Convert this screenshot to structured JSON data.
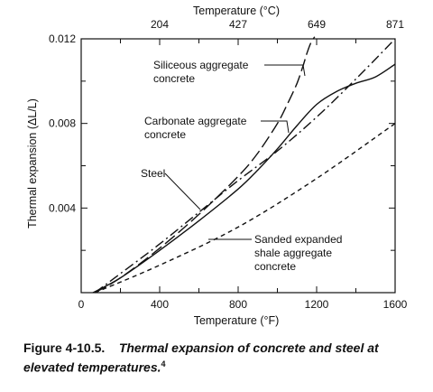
{
  "chart_data": {
    "type": "line",
    "xlabel": "Temperature (°F)",
    "x2label": "Temperature (°C)",
    "ylabel": "Thermal expansion (ΔL/L)",
    "xlim": [
      0,
      1600
    ],
    "ylim": [
      0,
      0.012
    ],
    "x_ticks": [
      "0",
      "400",
      "800",
      "1200",
      "1600"
    ],
    "x_tick_values": [
      0,
      400,
      800,
      1200,
      1600
    ],
    "x2_ticks": [
      "204",
      "427",
      "649",
      "871"
    ],
    "x2_tick_values": [
      400,
      800,
      1200,
      1600
    ],
    "y_ticks": [
      "0.004",
      "0.008",
      "0.012"
    ],
    "y_tick_values": [
      0.004,
      0.008,
      0.012
    ],
    "series": [
      {
        "name": "Siliceous aggregate concrete",
        "style": "long-dash",
        "x": [
          70,
          200,
          400,
          600,
          800,
          900,
          1000,
          1050,
          1100,
          1130,
          1150,
          1170,
          1190
        ],
        "y": [
          0,
          0.0007,
          0.0021,
          0.0037,
          0.0055,
          0.0066,
          0.008,
          0.0089,
          0.0099,
          0.0107,
          0.0113,
          0.0118,
          0.0121
        ]
      },
      {
        "name": "Carbonate aggregate concrete",
        "style": "solid",
        "x": [
          60,
          200,
          400,
          600,
          800,
          900,
          1000,
          1100,
          1200,
          1300,
          1400,
          1500,
          1600
        ],
        "y": [
          0,
          0.0007,
          0.002,
          0.0034,
          0.0049,
          0.0058,
          0.0068,
          0.0079,
          0.0089,
          0.0095,
          0.0099,
          0.0102,
          0.0108
        ]
      },
      {
        "name": "Steel",
        "style": "dash-dot",
        "x": [
          70,
          200,
          400,
          600,
          800,
          1000,
          1200,
          1400,
          1600
        ],
        "y": [
          0,
          0.0009,
          0.0023,
          0.0038,
          0.0053,
          0.0067,
          0.0083,
          0.0101,
          0.012
        ]
      },
      {
        "name": "Sanded expanded shale aggregate concrete",
        "style": "short-dash",
        "x": [
          70,
          400,
          800,
          1200,
          1600
        ],
        "y": [
          0,
          0.0013,
          0.0031,
          0.0054,
          0.008
        ]
      }
    ],
    "annotations": [
      {
        "lines": [
          "Siliceous aggregate",
          "concrete"
        ]
      },
      {
        "lines": [
          "Carbonate aggregate",
          "concrete"
        ]
      },
      {
        "lines": [
          "Steel"
        ]
      },
      {
        "lines": [
          "Sanded expanded",
          "shale aggregate",
          "concrete"
        ]
      }
    ],
    "grid": false,
    "legend": "none"
  },
  "caption": {
    "figure_label": "Figure 4-10.5.",
    "text": "Thermal expansion of concrete and steel at elevated temperatures.",
    "superscript": "4"
  }
}
